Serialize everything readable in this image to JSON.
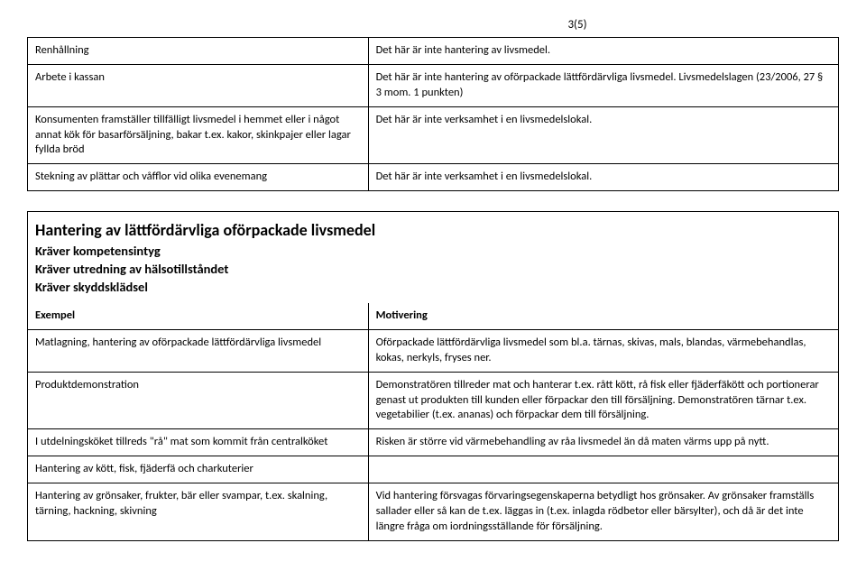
{
  "page_number": "3(5)",
  "table1": {
    "rows": [
      {
        "left": "Renhållning",
        "right": "Det här är inte hantering av livsmedel."
      },
      {
        "left": "Arbete i kassan",
        "right": "Det här är inte hantering av oförpackade lättfördärvliga livsmedel. Livsmedelslagen (23/2006, 27 § 3 mom. 1 punkten)"
      },
      {
        "left": "Konsumenten framställer tillfälligt livsmedel i hemmet eller i något annat kök för basarförsäljning, bakar t.ex. kakor, skinkpajer eller lagar fyllda bröd",
        "right": "Det här är inte verksamhet i en livsmedelslokal."
      },
      {
        "left": "Stekning av plättar och våfflor vid olika evenemang",
        "right": "Det här är inte verksamhet i en livsmedelslokal."
      }
    ]
  },
  "section2": {
    "title": "Hantering av lättfördärvliga oförpackade livsmedel",
    "sub1": "Kräver kompetensintyg",
    "sub2": "Kräver utredning av hälsotillståndet",
    "sub3": "Kräver skyddsklädsel",
    "col_left": "Exempel",
    "col_right": "Motivering",
    "rows": [
      {
        "left": "Matlagning, hantering av oförpackade lättfördärvliga livsmedel",
        "right": "Oförpackade lättfördärvliga livsmedel som bl.a. tärnas, skivas, mals, blandas, värmebehandlas, kokas, nerkyls, fryses ner."
      },
      {
        "left": "Produktdemonstration",
        "right": "Demonstratören tillreder mat och hanterar t.ex. rått kött, rå fisk eller fjäderfäkött och portionerar genast ut produkten till kunden eller förpackar den till försäljning. Demonstratören tärnar t.ex. vegetabilier (t.ex. ananas) och förpackar dem till försäljning."
      },
      {
        "left": "I utdelningsköket tillreds \"rå\" mat som kommit från centralköket",
        "right": "Risken är större vid värmebehandling av råa livsmedel än då maten värms upp på nytt."
      },
      {
        "left": "Hantering av kött, fisk, fjäderfä och charkuterier",
        "right": ""
      },
      {
        "left": "Hantering av grönsaker, frukter, bär eller svampar, t.ex. skalning, tärning, hackning, skivning",
        "right": "Vid hantering försvagas förvaringsegenskaperna betydligt hos grönsaker. Av grönsaker framställs sallader eller så kan de t.ex. läggas in (t.ex. inlagda rödbetor eller bärsylter), och då är det inte längre fråga om iordningsställande för försäljning."
      }
    ]
  }
}
